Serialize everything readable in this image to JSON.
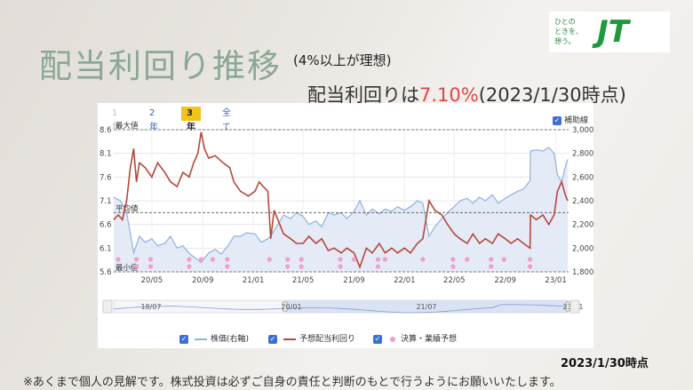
{
  "title": "配当利回り推移",
  "subtitle": "(4%以上が理想)",
  "headline": {
    "prefix": "配当利回りは",
    "value": "7.10%",
    "suffix": "(2023/1/30時点)"
  },
  "logo": {
    "tagline_line1": "ひとの",
    "tagline_line2": "ときを、",
    "tagline_line3": "想う。",
    "brand": "JT"
  },
  "tabs": [
    {
      "label": "1年",
      "state": "disabled"
    },
    {
      "label": "2年",
      "state": "normal"
    },
    {
      "label": "3年",
      "state": "active"
    },
    {
      "label": "全て",
      "state": "normal"
    }
  ],
  "aux_lines_label": "補助線",
  "legend": {
    "price": "株価(右軸)",
    "yield": "予想配当利回り",
    "events": "決算・業績予想"
  },
  "date_note": "2023/1/30時点",
  "footer_note": "※あくまで個人の見解です。株式投資は必ずご自身の責任と判断のもとで行うようにお願いいたします。",
  "colors": {
    "yield": "#b5473b",
    "price": "#8fb1e0",
    "price_fill": "#dfe8f6",
    "events": "#f09ed0",
    "accent": "#e04646",
    "title": "#8aa896"
  },
  "chart_data": {
    "type": "line",
    "x_ticks": [
      "20/05",
      "20/09",
      "21/01",
      "21/05",
      "21/09",
      "22/01",
      "22/05",
      "22/09",
      "23/01"
    ],
    "x_range": [
      "2020-01-30",
      "2023-02-01"
    ],
    "y_left": {
      "range": [
        5.6,
        8.6
      ],
      "ticks": [
        "5.6",
        "6.1",
        "6.6",
        "7.1",
        "7.6",
        "8.1",
        "8.6"
      ]
    },
    "y_right": {
      "range": [
        1800,
        3000
      ],
      "ticks": [
        "1,800",
        "2,000",
        "2,200",
        "2,400",
        "2,600",
        "2,800",
        "3,000"
      ]
    },
    "ref_lines": {
      "max_label": "最大値",
      "max": 8.6,
      "avg_label": "平均値",
      "avg": 6.85,
      "min_label": "最小値",
      "min": 5.6
    },
    "series": [
      {
        "name": "予想配当利回り",
        "axis": "left",
        "points": [
          [
            "2020-01-30",
            6.7
          ],
          [
            "2020-02-10",
            6.8
          ],
          [
            "2020-02-20",
            6.7
          ],
          [
            "2020-03-01",
            7.1
          ],
          [
            "2020-03-10",
            7.8
          ],
          [
            "2020-03-18",
            8.2
          ],
          [
            "2020-03-25",
            7.5
          ],
          [
            "2020-04-01",
            7.9
          ],
          [
            "2020-04-15",
            7.8
          ],
          [
            "2020-05-01",
            7.6
          ],
          [
            "2020-05-15",
            7.9
          ],
          [
            "2020-06-01",
            7.7
          ],
          [
            "2020-06-15",
            7.5
          ],
          [
            "2020-07-01",
            7.4
          ],
          [
            "2020-07-15",
            7.7
          ],
          [
            "2020-07-30",
            7.6
          ],
          [
            "2020-08-10",
            7.9
          ],
          [
            "2020-08-20",
            8.1
          ],
          [
            "2020-08-28",
            8.55
          ],
          [
            "2020-09-05",
            8.2
          ],
          [
            "2020-09-15",
            8.0
          ],
          [
            "2020-10-01",
            8.05
          ],
          [
            "2020-10-20",
            7.9
          ],
          [
            "2020-11-05",
            7.8
          ],
          [
            "2020-11-15",
            7.5
          ],
          [
            "2020-12-01",
            7.3
          ],
          [
            "2020-12-20",
            7.2
          ],
          [
            "2021-01-05",
            7.3
          ],
          [
            "2021-01-15",
            7.5
          ],
          [
            "2021-01-25",
            7.4
          ],
          [
            "2021-02-05",
            7.3
          ],
          [
            "2021-02-12",
            6.3
          ],
          [
            "2021-02-20",
            6.9
          ],
          [
            "2021-03-01",
            6.7
          ],
          [
            "2021-03-15",
            6.4
          ],
          [
            "2021-04-01",
            6.3
          ],
          [
            "2021-04-15",
            6.2
          ],
          [
            "2021-05-01",
            6.2
          ],
          [
            "2021-05-15",
            6.35
          ],
          [
            "2021-06-01",
            6.2
          ],
          [
            "2021-06-15",
            6.3
          ],
          [
            "2021-07-01",
            6.05
          ],
          [
            "2021-07-15",
            6.1
          ],
          [
            "2021-08-01",
            6.0
          ],
          [
            "2021-08-15",
            6.1
          ],
          [
            "2021-09-01",
            6.0
          ],
          [
            "2021-09-15",
            5.7
          ],
          [
            "2021-10-01",
            6.1
          ],
          [
            "2021-10-15",
            6.0
          ],
          [
            "2021-11-01",
            6.2
          ],
          [
            "2021-11-15",
            6.0
          ],
          [
            "2021-12-01",
            6.1
          ],
          [
            "2021-12-15",
            6.0
          ],
          [
            "2022-01-01",
            6.1
          ],
          [
            "2022-01-15",
            6.0
          ],
          [
            "2022-02-01",
            6.2
          ],
          [
            "2022-02-14",
            6.3
          ],
          [
            "2022-03-01",
            7.1
          ],
          [
            "2022-03-15",
            6.9
          ],
          [
            "2022-04-01",
            6.8
          ],
          [
            "2022-04-15",
            6.6
          ],
          [
            "2022-05-01",
            6.4
          ],
          [
            "2022-05-15",
            6.3
          ],
          [
            "2022-06-01",
            6.2
          ],
          [
            "2022-06-15",
            6.4
          ],
          [
            "2022-07-01",
            6.2
          ],
          [
            "2022-07-15",
            6.3
          ],
          [
            "2022-08-01",
            6.2
          ],
          [
            "2022-08-15",
            6.4
          ],
          [
            "2022-09-01",
            6.3
          ],
          [
            "2022-09-15",
            6.2
          ],
          [
            "2022-10-01",
            6.3
          ],
          [
            "2022-10-15",
            6.2
          ],
          [
            "2022-10-31",
            6.1
          ],
          [
            "2022-11-01",
            6.8
          ],
          [
            "2022-11-15",
            6.7
          ],
          [
            "2022-12-01",
            6.8
          ],
          [
            "2022-12-15",
            6.6
          ],
          [
            "2022-12-28",
            6.8
          ],
          [
            "2023-01-05",
            7.3
          ],
          [
            "2023-01-15",
            7.5
          ],
          [
            "2023-01-25",
            7.2
          ],
          [
            "2023-01-30",
            7.1
          ]
        ]
      },
      {
        "name": "株価(右軸)",
        "axis": "right",
        "points": [
          [
            "2020-01-30",
            2430
          ],
          [
            "2020-02-15",
            2400
          ],
          [
            "2020-03-01",
            2300
          ],
          [
            "2020-03-18",
            1960
          ],
          [
            "2020-04-01",
            2100
          ],
          [
            "2020-04-15",
            2050
          ],
          [
            "2020-05-01",
            2080
          ],
          [
            "2020-05-15",
            2020
          ],
          [
            "2020-06-01",
            2040
          ],
          [
            "2020-06-15",
            2100
          ],
          [
            "2020-07-01",
            2000
          ],
          [
            "2020-07-15",
            2020
          ],
          [
            "2020-08-01",
            1950
          ],
          [
            "2020-08-28",
            1880
          ],
          [
            "2020-09-15",
            1960
          ],
          [
            "2020-10-01",
            1990
          ],
          [
            "2020-10-15",
            1950
          ],
          [
            "2020-11-01",
            2020
          ],
          [
            "2020-11-15",
            2100
          ],
          [
            "2020-12-01",
            2100
          ],
          [
            "2020-12-15",
            2130
          ],
          [
            "2021-01-05",
            2120
          ],
          [
            "2021-01-20",
            2050
          ],
          [
            "2021-02-05",
            2080
          ],
          [
            "2021-02-12",
            2100
          ],
          [
            "2021-03-01",
            2200
          ],
          [
            "2021-03-15",
            2280
          ],
          [
            "2021-04-01",
            2250
          ],
          [
            "2021-04-15",
            2300
          ],
          [
            "2021-05-01",
            2270
          ],
          [
            "2021-05-15",
            2200
          ],
          [
            "2021-06-01",
            2230
          ],
          [
            "2021-06-15",
            2180
          ],
          [
            "2021-07-01",
            2300
          ],
          [
            "2021-07-15",
            2280
          ],
          [
            "2021-08-01",
            2300
          ],
          [
            "2021-08-15",
            2250
          ],
          [
            "2021-09-01",
            2310
          ],
          [
            "2021-09-15",
            2400
          ],
          [
            "2021-10-01",
            2280
          ],
          [
            "2021-10-15",
            2330
          ],
          [
            "2021-11-01",
            2290
          ],
          [
            "2021-11-15",
            2330
          ],
          [
            "2021-12-01",
            2310
          ],
          [
            "2021-12-15",
            2350
          ],
          [
            "2022-01-01",
            2320
          ],
          [
            "2022-01-15",
            2350
          ],
          [
            "2022-02-01",
            2400
          ],
          [
            "2022-02-14",
            2380
          ],
          [
            "2022-03-01",
            2100
          ],
          [
            "2022-03-15",
            2180
          ],
          [
            "2022-04-01",
            2250
          ],
          [
            "2022-04-15",
            2300
          ],
          [
            "2022-05-01",
            2350
          ],
          [
            "2022-05-15",
            2400
          ],
          [
            "2022-06-01",
            2420
          ],
          [
            "2022-06-15",
            2380
          ],
          [
            "2022-07-01",
            2430
          ],
          [
            "2022-07-15",
            2400
          ],
          [
            "2022-08-01",
            2450
          ],
          [
            "2022-08-15",
            2380
          ],
          [
            "2022-09-01",
            2420
          ],
          [
            "2022-09-15",
            2450
          ],
          [
            "2022-10-01",
            2480
          ],
          [
            "2022-10-15",
            2500
          ],
          [
            "2022-10-31",
            2570
          ],
          [
            "2022-11-01",
            2820
          ],
          [
            "2022-11-15",
            2830
          ],
          [
            "2022-12-01",
            2820
          ],
          [
            "2022-12-15",
            2850
          ],
          [
            "2022-12-28",
            2800
          ],
          [
            "2023-01-05",
            2620
          ],
          [
            "2023-01-15",
            2560
          ],
          [
            "2023-01-25",
            2700
          ],
          [
            "2023-01-30",
            2750
          ]
        ]
      }
    ],
    "events": [
      {
        "date": "2020-02-10",
        "rows": [
          1
        ]
      },
      {
        "date": "2020-03-25",
        "rows": [
          1,
          2
        ]
      },
      {
        "date": "2020-04-28",
        "rows": [
          1,
          2
        ]
      },
      {
        "date": "2020-07-30",
        "rows": [
          1,
          2
        ]
      },
      {
        "date": "2020-08-28",
        "rows": [
          1
        ]
      },
      {
        "date": "2020-09-25",
        "rows": [
          1
        ]
      },
      {
        "date": "2020-10-30",
        "rows": [
          1,
          2
        ]
      },
      {
        "date": "2021-02-09",
        "rows": [
          1
        ]
      },
      {
        "date": "2021-03-25",
        "rows": [
          1,
          2
        ]
      },
      {
        "date": "2021-04-27",
        "rows": [
          1,
          2
        ]
      },
      {
        "date": "2021-07-30",
        "rows": [
          1,
          2
        ]
      },
      {
        "date": "2021-09-01",
        "rows": [
          1
        ]
      },
      {
        "date": "2021-10-29",
        "rows": [
          1,
          2
        ]
      },
      {
        "date": "2021-11-15",
        "rows": [
          1
        ]
      },
      {
        "date": "2022-02-14",
        "rows": [
          1
        ]
      },
      {
        "date": "2022-04-28",
        "rows": [
          1,
          2
        ]
      },
      {
        "date": "2022-06-01",
        "rows": [
          1
        ]
      },
      {
        "date": "2022-07-29",
        "rows": [
          1,
          2
        ]
      },
      {
        "date": "2022-08-29",
        "rows": [
          1
        ]
      },
      {
        "date": "2022-10-31",
        "rows": [
          1,
          2
        ]
      }
    ],
    "navigator": {
      "labels": [
        "18/07",
        "20/01",
        "21/07",
        "23/01"
      ]
    }
  }
}
